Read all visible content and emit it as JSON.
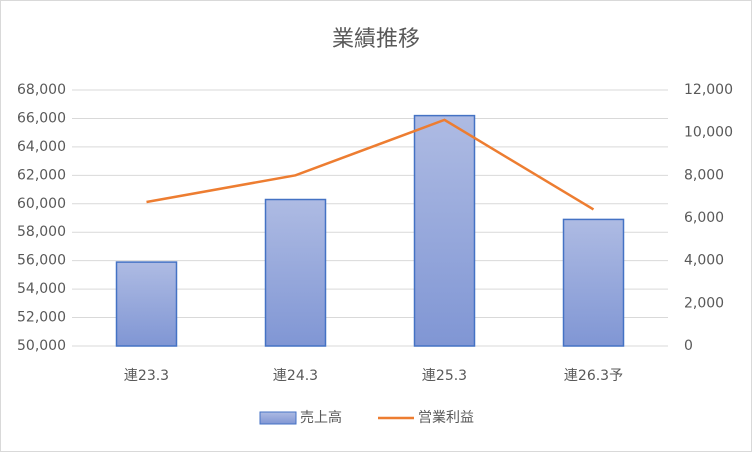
{
  "chart_data": {
    "type": "bar-line",
    "title": "業績推移",
    "categories": [
      "連23.3",
      "連24.3",
      "連25.3",
      "連26.3予"
    ],
    "series": [
      {
        "name": "売上高",
        "type": "bar",
        "color": "#8497d6",
        "values": [
          55900,
          60300,
          66200,
          58900
        ]
      },
      {
        "name": "営業利益",
        "type": "line",
        "color": "#ed7d31",
        "axis": "y2",
        "values": [
          6750,
          8000,
          10600,
          6400
        ]
      }
    ],
    "ylim": [
      50000,
      68000
    ],
    "yticks": [
      {
        "value": 50000,
        "label": "50,000"
      },
      {
        "value": 52000,
        "label": "52,000"
      },
      {
        "value": 54000,
        "label": "54,000"
      },
      {
        "value": 56000,
        "label": "56,000"
      },
      {
        "value": 58000,
        "label": "58,000"
      },
      {
        "value": 60000,
        "label": "60,000"
      },
      {
        "value": 62000,
        "label": "62,000"
      },
      {
        "value": 64000,
        "label": "64,000"
      },
      {
        "value": 66000,
        "label": "66,000"
      },
      {
        "value": 68000,
        "label": "68,000"
      }
    ],
    "y2lim": [
      0,
      12000
    ],
    "y2ticks": [
      0,
      {
        "value": 2000,
        "label": "2,000"
      },
      {
        "value": 4000,
        "label": "4,000"
      },
      {
        "value": 6000,
        "label": "6,000"
      },
      {
        "value": 8000,
        "label": "8,000"
      },
      {
        "value": 10000,
        "label": "10,000"
      },
      {
        "value": 12000,
        "label": "12,000"
      }
    ],
    "grid": true,
    "legend": "bottom"
  }
}
